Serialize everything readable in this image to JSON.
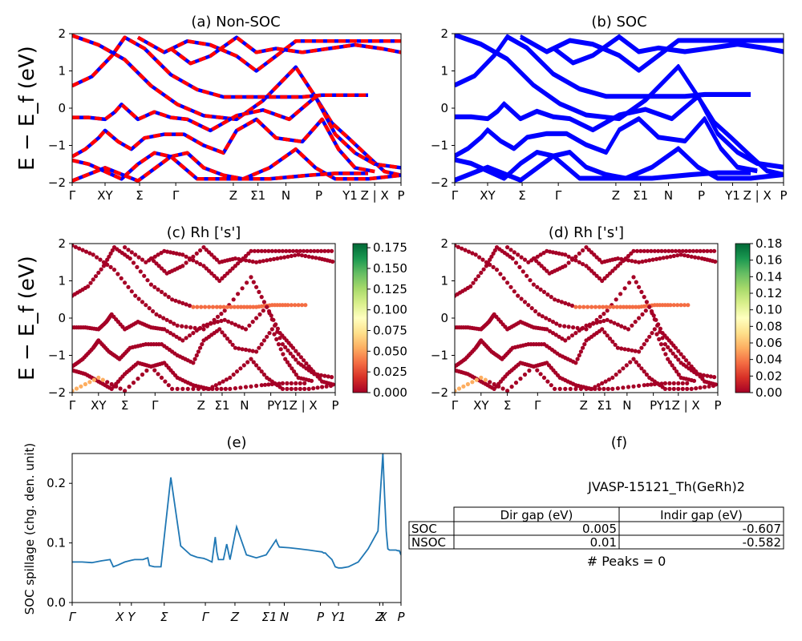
{
  "figure": {
    "material_label": "JVASP-15121_Th(GeRh)2",
    "peaks_text": "# Peaks = 0"
  },
  "chart_data": [
    {
      "id": "a",
      "type": "line",
      "title": "(a) Non-SOC",
      "ylabel": "E − E_f (eV)",
      "ylim": [
        -2,
        2
      ],
      "yticks": [
        "2",
        "1",
        "0",
        "−1",
        "−2"
      ],
      "xtick_labels": [
        "Γ",
        "XY",
        "Σ",
        "Γ",
        "Z",
        "Σ1",
        "N",
        "P",
        "Y1",
        "Z | X",
        "P"
      ],
      "series_colors": [
        "#0000ff",
        "#ff0000"
      ],
      "note": "bands drawn blue solid with red dashed overlay",
      "bands": [
        [
          [
            0,
            1.95
          ],
          [
            0.08,
            1.7
          ],
          [
            0.16,
            1.3
          ],
          [
            0.24,
            0.6
          ],
          [
            0.32,
            0.1
          ],
          [
            0.4,
            -0.2
          ],
          [
            0.5,
            -0.3
          ],
          [
            0.58,
            0.2
          ],
          [
            0.68,
            1.1
          ],
          [
            0.74,
            0.3
          ],
          [
            0.79,
            -0.4
          ],
          [
            0.84,
            -0.8
          ],
          [
            0.9,
            -1.3
          ],
          [
            0.95,
            -1.7
          ],
          [
            1.0,
            -1.8
          ]
        ],
        [
          [
            0,
            0.6
          ],
          [
            0.06,
            0.85
          ],
          [
            0.12,
            1.4
          ],
          [
            0.16,
            1.9
          ],
          [
            0.22,
            1.6
          ],
          [
            0.3,
            0.9
          ],
          [
            0.38,
            0.5
          ],
          [
            0.46,
            0.3
          ],
          [
            0.55,
            0.3
          ],
          [
            0.63,
            0.3
          ],
          [
            0.7,
            0.3
          ],
          [
            0.76,
            0.35
          ],
          [
            0.82,
            0.35
          ],
          [
            0.9,
            0.35
          ]
        ],
        [
          [
            0,
            -0.25
          ],
          [
            0.05,
            -0.25
          ],
          [
            0.1,
            -0.3
          ],
          [
            0.13,
            -0.1
          ],
          [
            0.15,
            0.1
          ],
          [
            0.2,
            -0.3
          ],
          [
            0.25,
            -0.1
          ],
          [
            0.3,
            -0.25
          ],
          [
            0.35,
            -0.3
          ],
          [
            0.42,
            -0.6
          ],
          [
            0.5,
            -0.2
          ],
          [
            0.58,
            -0.05
          ],
          [
            0.66,
            -0.3
          ],
          [
            0.74,
            0.3
          ],
          [
            0.8,
            -0.7
          ],
          [
            0.86,
            -1.2
          ],
          [
            0.92,
            -1.5
          ],
          [
            1.0,
            -1.6
          ]
        ],
        [
          [
            0,
            -1.3
          ],
          [
            0.04,
            -1.1
          ],
          [
            0.08,
            -0.8
          ],
          [
            0.1,
            -0.6
          ],
          [
            0.14,
            -0.9
          ],
          [
            0.18,
            -1.1
          ],
          [
            0.22,
            -0.8
          ],
          [
            0.28,
            -0.7
          ],
          [
            0.34,
            -0.7
          ],
          [
            0.4,
            -1.0
          ],
          [
            0.46,
            -1.2
          ],
          [
            0.5,
            -0.6
          ],
          [
            0.56,
            -0.3
          ],
          [
            0.62,
            -0.8
          ],
          [
            0.7,
            -0.9
          ],
          [
            0.76,
            -0.3
          ],
          [
            0.81,
            -1.1
          ],
          [
            0.86,
            -1.6
          ],
          [
            0.92,
            -1.7
          ]
        ],
        [
          [
            0,
            -1.4
          ],
          [
            0.05,
            -1.5
          ],
          [
            0.1,
            -1.7
          ],
          [
            0.15,
            -1.9
          ],
          [
            0.2,
            -1.5
          ],
          [
            0.25,
            -1.2
          ],
          [
            0.3,
            -1.3
          ],
          [
            0.35,
            -1.2
          ],
          [
            0.4,
            -1.6
          ],
          [
            0.46,
            -1.8
          ],
          [
            0.52,
            -1.9
          ],
          [
            0.6,
            -1.6
          ],
          [
            0.68,
            -1.1
          ],
          [
            0.74,
            -1.6
          ],
          [
            0.8,
            -1.9
          ],
          [
            0.9,
            -1.9
          ],
          [
            1.0,
            -1.8
          ]
        ],
        [
          [
            0,
            -1.95
          ],
          [
            0.1,
            -1.6
          ],
          [
            0.2,
            -1.95
          ],
          [
            0.3,
            -1.3
          ],
          [
            0.38,
            -1.9
          ],
          [
            0.5,
            -1.9
          ],
          [
            0.6,
            -1.9
          ],
          [
            0.72,
            -1.8
          ],
          [
            0.8,
            -1.75
          ],
          [
            0.9,
            -1.75
          ]
        ],
        [
          [
            0.2,
            1.9
          ],
          [
            0.28,
            1.5
          ],
          [
            0.35,
            1.8
          ],
          [
            0.42,
            1.7
          ],
          [
            0.5,
            1.4
          ],
          [
            0.56,
            1.0
          ],
          [
            0.62,
            1.4
          ],
          [
            0.68,
            1.8
          ],
          [
            0.76,
            1.8
          ],
          [
            0.84,
            1.8
          ],
          [
            0.92,
            1.8
          ],
          [
            1.0,
            1.8
          ]
        ],
        [
          [
            0.3,
            1.6
          ],
          [
            0.36,
            1.2
          ],
          [
            0.42,
            1.4
          ],
          [
            0.5,
            1.9
          ],
          [
            0.56,
            1.5
          ],
          [
            0.62,
            1.6
          ],
          [
            0.7,
            1.5
          ],
          [
            0.78,
            1.6
          ],
          [
            0.86,
            1.7
          ],
          [
            0.94,
            1.6
          ],
          [
            1.0,
            1.5
          ]
        ]
      ]
    },
    {
      "id": "b",
      "type": "line",
      "title": "(b) SOC",
      "ylim": [
        -2,
        2
      ],
      "yticks": [
        "2",
        "1",
        "0",
        "−1",
        "−2"
      ],
      "xtick_labels": [
        "Γ",
        "XY",
        "Σ",
        "Γ",
        "Z",
        "Σ1",
        "N",
        "P",
        "Y1",
        "Z | X",
        "P"
      ],
      "series_colors": [
        "#0000ff"
      ],
      "bands": [
        [
          [
            0,
            1.95
          ],
          [
            0.08,
            1.7
          ],
          [
            0.16,
            1.3
          ],
          [
            0.24,
            0.6
          ],
          [
            0.32,
            0.1
          ],
          [
            0.4,
            -0.2
          ],
          [
            0.5,
            -0.3
          ],
          [
            0.58,
            0.2
          ],
          [
            0.68,
            1.1
          ],
          [
            0.74,
            0.3
          ],
          [
            0.79,
            -0.4
          ],
          [
            0.84,
            -0.8
          ],
          [
            0.9,
            -1.3
          ],
          [
            0.95,
            -1.7
          ],
          [
            1.0,
            -1.8
          ]
        ],
        [
          [
            0,
            0.6
          ],
          [
            0.06,
            0.85
          ],
          [
            0.12,
            1.4
          ],
          [
            0.16,
            1.9
          ],
          [
            0.22,
            1.6
          ],
          [
            0.3,
            0.9
          ],
          [
            0.38,
            0.5
          ],
          [
            0.46,
            0.3
          ],
          [
            0.55,
            0.3
          ],
          [
            0.63,
            0.3
          ],
          [
            0.7,
            0.3
          ],
          [
            0.76,
            0.35
          ],
          [
            0.82,
            0.35
          ],
          [
            0.9,
            0.35
          ]
        ],
        [
          [
            0,
            -0.25
          ],
          [
            0.05,
            -0.25
          ],
          [
            0.1,
            -0.3
          ],
          [
            0.13,
            -0.1
          ],
          [
            0.15,
            0.1
          ],
          [
            0.2,
            -0.3
          ],
          [
            0.25,
            -0.1
          ],
          [
            0.3,
            -0.25
          ],
          [
            0.35,
            -0.3
          ],
          [
            0.42,
            -0.6
          ],
          [
            0.5,
            -0.2
          ],
          [
            0.58,
            -0.05
          ],
          [
            0.66,
            -0.3
          ],
          [
            0.74,
            0.3
          ],
          [
            0.8,
            -0.7
          ],
          [
            0.86,
            -1.2
          ],
          [
            0.92,
            -1.5
          ],
          [
            1.0,
            -1.6
          ]
        ],
        [
          [
            0,
            -1.3
          ],
          [
            0.04,
            -1.1
          ],
          [
            0.08,
            -0.8
          ],
          [
            0.1,
            -0.6
          ],
          [
            0.14,
            -0.9
          ],
          [
            0.18,
            -1.1
          ],
          [
            0.22,
            -0.8
          ],
          [
            0.28,
            -0.7
          ],
          [
            0.34,
            -0.7
          ],
          [
            0.4,
            -1.0
          ],
          [
            0.46,
            -1.2
          ],
          [
            0.5,
            -0.6
          ],
          [
            0.56,
            -0.3
          ],
          [
            0.62,
            -0.8
          ],
          [
            0.7,
            -0.9
          ],
          [
            0.76,
            -0.3
          ],
          [
            0.81,
            -1.1
          ],
          [
            0.86,
            -1.6
          ],
          [
            0.92,
            -1.7
          ]
        ],
        [
          [
            0,
            -1.4
          ],
          [
            0.05,
            -1.5
          ],
          [
            0.1,
            -1.7
          ],
          [
            0.15,
            -1.9
          ],
          [
            0.2,
            -1.5
          ],
          [
            0.25,
            -1.2
          ],
          [
            0.3,
            -1.3
          ],
          [
            0.35,
            -1.2
          ],
          [
            0.4,
            -1.6
          ],
          [
            0.46,
            -1.8
          ],
          [
            0.52,
            -1.9
          ],
          [
            0.6,
            -1.6
          ],
          [
            0.68,
            -1.1
          ],
          [
            0.74,
            -1.6
          ],
          [
            0.8,
            -1.9
          ],
          [
            0.9,
            -1.9
          ],
          [
            1.0,
            -1.8
          ]
        ],
        [
          [
            0,
            -1.95
          ],
          [
            0.1,
            -1.6
          ],
          [
            0.2,
            -1.95
          ],
          [
            0.3,
            -1.3
          ],
          [
            0.38,
            -1.9
          ],
          [
            0.5,
            -1.9
          ],
          [
            0.6,
            -1.9
          ],
          [
            0.72,
            -1.8
          ],
          [
            0.8,
            -1.75
          ],
          [
            0.9,
            -1.75
          ]
        ],
        [
          [
            0.2,
            1.9
          ],
          [
            0.28,
            1.5
          ],
          [
            0.35,
            1.8
          ],
          [
            0.42,
            1.7
          ],
          [
            0.5,
            1.4
          ],
          [
            0.56,
            1.0
          ],
          [
            0.62,
            1.4
          ],
          [
            0.68,
            1.8
          ],
          [
            0.76,
            1.8
          ],
          [
            0.84,
            1.8
          ],
          [
            0.92,
            1.8
          ],
          [
            1.0,
            1.8
          ]
        ],
        [
          [
            0.3,
            1.6
          ],
          [
            0.36,
            1.2
          ],
          [
            0.42,
            1.4
          ],
          [
            0.5,
            1.9
          ],
          [
            0.56,
            1.5
          ],
          [
            0.62,
            1.6
          ],
          [
            0.7,
            1.5
          ],
          [
            0.78,
            1.6
          ],
          [
            0.86,
            1.7
          ],
          [
            0.94,
            1.6
          ],
          [
            1.0,
            1.5
          ]
        ]
      ]
    },
    {
      "id": "c",
      "type": "scatter",
      "title": "(c)  Rh ['s']",
      "ylabel": "E − E_f (eV)",
      "ylim": [
        -2,
        2
      ],
      "yticks": [
        "2",
        "1",
        "0",
        "−1",
        "−2"
      ],
      "xtick_labels": [
        "Γ",
        "XY",
        "Σ",
        "Γ",
        "Z",
        "Σ1",
        "N",
        "P",
        "Y1Z | X",
        "P"
      ],
      "colorbar_ticks": [
        "0.175",
        "0.150",
        "0.125",
        "0.100",
        "0.075",
        "0.050",
        "0.025",
        "0.000"
      ],
      "colorbar_range": [
        0,
        0.18
      ],
      "colormap": [
        "#a50026",
        "#d73027",
        "#f46d43",
        "#fdae61",
        "#fee08b",
        "#ffffbf",
        "#d9ef8b",
        "#a6d96a",
        "#66bd63",
        "#1a9850",
        "#006837"
      ],
      "highlight_band": 1,
      "highlight_value": 0.05
    },
    {
      "id": "d",
      "type": "scatter",
      "title": "(d) Rh ['s']",
      "ylim": [
        -2,
        2
      ],
      "yticks": [
        "2",
        "1",
        "0",
        "−1",
        "−2"
      ],
      "xtick_labels": [
        "Γ",
        "XY",
        "Σ",
        "Γ",
        "Z",
        "Σ1",
        "N",
        "P",
        "Y1Z | X",
        "P"
      ],
      "colorbar_ticks": [
        "0.18",
        "0.16",
        "0.14",
        "0.12",
        "0.10",
        "0.08",
        "0.06",
        "0.04",
        "0.02",
        "0.00"
      ],
      "colorbar_range": [
        0,
        0.18
      ],
      "colormap": [
        "#a50026",
        "#d73027",
        "#f46d43",
        "#fdae61",
        "#fee08b",
        "#ffffbf",
        "#d9ef8b",
        "#a6d96a",
        "#66bd63",
        "#1a9850",
        "#006837"
      ],
      "highlight_band": 1,
      "highlight_value": 0.05
    },
    {
      "id": "e",
      "type": "line",
      "title": "(e)",
      "ylabel": "SOC spillage (chg. den. unit)",
      "ylim": [
        0,
        0.25
      ],
      "yticks": [
        "0.2",
        "0.1",
        "0.0"
      ],
      "xtick_labels": [
        "Γ",
        "X",
        "Y",
        "Σ",
        "Γ",
        "Z",
        "Σ1",
        "N",
        "P",
        "Y1",
        "Z",
        "X",
        "P"
      ],
      "color": "#1f77b4",
      "x": [
        0,
        0.03,
        0.06,
        0.09,
        0.115,
        0.125,
        0.14,
        0.16,
        0.18,
        0.19,
        0.215,
        0.225,
        0.23,
        0.235,
        0.25,
        0.27,
        0.3,
        0.33,
        0.36,
        0.37,
        0.38,
        0.4,
        0.41,
        0.425,
        0.435,
        0.44,
        0.445,
        0.46,
        0.47,
        0.48,
        0.5,
        0.53,
        0.56,
        0.59,
        0.62,
        0.625,
        0.63,
        0.66,
        0.69,
        0.72,
        0.745,
        0.76,
        0.765,
        0.77,
        0.775,
        0.79,
        0.8,
        0.81,
        0.82,
        0.84,
        0.87,
        0.9,
        0.93,
        0.945,
        0.95,
        0.955,
        0.96,
        0.965,
        0.975,
        0.985,
        0.99,
        0.995,
        1.0
      ],
      "values": [
        0.068,
        0.068,
        0.067,
        0.07,
        0.072,
        0.06,
        0.063,
        0.068,
        0.071,
        0.072,
        0.072,
        0.074,
        0.075,
        0.062,
        0.06,
        0.06,
        0.21,
        0.095,
        0.08,
        0.078,
        0.076,
        0.074,
        0.072,
        0.068,
        0.11,
        0.085,
        0.072,
        0.072,
        0.098,
        0.072,
        0.127,
        0.08,
        0.075,
        0.08,
        0.105,
        0.098,
        0.093,
        0.092,
        0.09,
        0.088,
        0.086,
        0.085,
        0.083,
        0.083,
        0.08,
        0.072,
        0.06,
        0.058,
        0.058,
        0.06,
        0.068,
        0.09,
        0.12,
        0.25,
        0.18,
        0.12,
        0.09,
        0.088,
        0.088,
        0.088,
        0.087,
        0.087,
        0.08
      ]
    },
    {
      "id": "f",
      "type": "table",
      "title": "(f)",
      "columns": [
        "",
        "Dir gap (eV)",
        "Indir gap (eV)"
      ],
      "rows": [
        [
          "SOC",
          "0.005",
          "-0.607"
        ],
        [
          "NSOC",
          "0.01",
          "-0.582"
        ]
      ]
    }
  ]
}
